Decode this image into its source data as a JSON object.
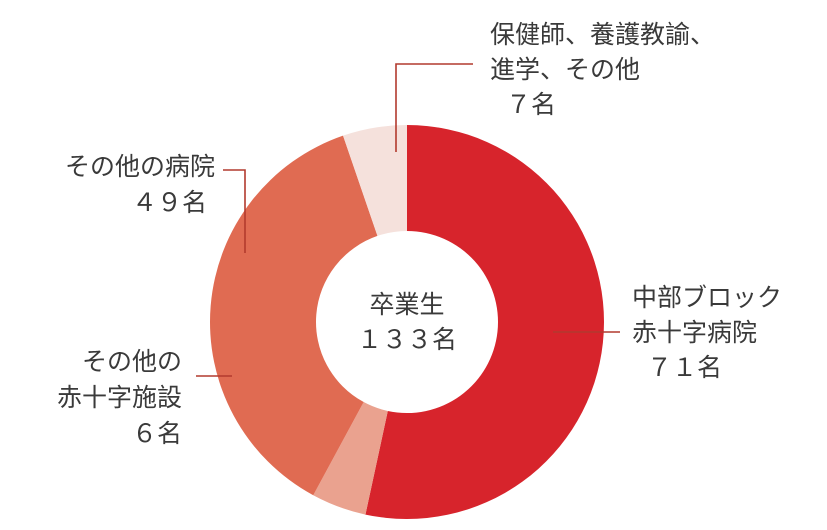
{
  "chart_data": {
    "type": "pie",
    "center_label": [
      "卒業生",
      "１３３名"
    ],
    "slices": [
      {
        "name": "中部ブロック赤十字病院",
        "value": 71,
        "color": "#d7242c",
        "label_lines": [
          "中部ブロック",
          "赤十字病院",
          "７１名"
        ]
      },
      {
        "name": "その他の赤十字施設",
        "value": 6,
        "color": "#eaa28f",
        "label_lines": [
          "その他の",
          "赤十字施設",
          "６名"
        ]
      },
      {
        "name": "その他の病院",
        "value": 49,
        "color": "#e06b52",
        "label_lines": [
          "その他の病院",
          "４９名"
        ]
      },
      {
        "name": "保健師、養護教諭、進学、その他",
        "value": 7,
        "color": "#f5e1dc",
        "label_lines": [
          "保健師、養護教諭、",
          "進学、その他",
          "７名"
        ]
      }
    ]
  }
}
